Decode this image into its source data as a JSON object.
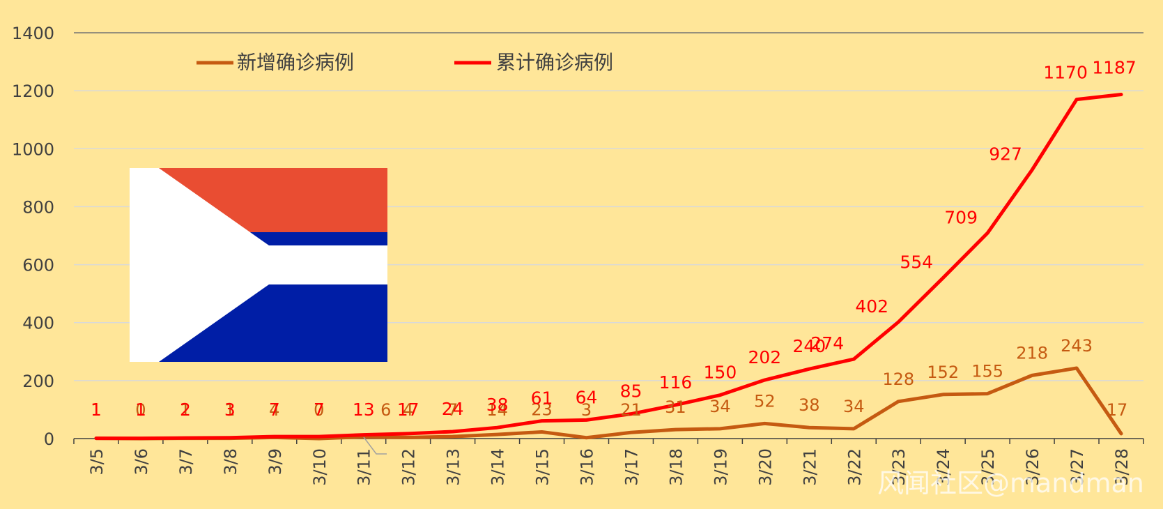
{
  "chart_data": {
    "type": "line",
    "categories": [
      "3/5",
      "3/6",
      "3/7",
      "3/8",
      "3/9",
      "3/10",
      "3/11",
      "3/12",
      "3/13",
      "3/14",
      "3/15",
      "3/16",
      "3/17",
      "3/18",
      "3/19",
      "3/20",
      "3/21",
      "3/22",
      "3/23",
      "3/24",
      "3/25",
      "3/26",
      "3/27",
      "3/28"
    ],
    "series": [
      {
        "name": "新增确诊病例",
        "color": "#C55A11",
        "values": [
          1,
          0,
          1,
          1,
          4,
          0,
          6,
          4,
          7,
          14,
          23,
          3,
          21,
          31,
          34,
          52,
          38,
          34,
          128,
          152,
          155,
          218,
          243,
          17
        ]
      },
      {
        "name": "累计确诊病例",
        "color": "#FF0000",
        "values": [
          1,
          1,
          2,
          3,
          7,
          7,
          13,
          17,
          24,
          38,
          61,
          64,
          85,
          116,
          150,
          202,
          240,
          274,
          402,
          554,
          709,
          927,
          1170,
          1187
        ]
      }
    ],
    "y_ticks": [
      "0",
      "200",
      "400",
      "600",
      "800",
      "1000",
      "1200",
      "1400"
    ],
    "ylim": [
      0,
      1400
    ],
    "grid": "horizontal",
    "legend": "top-left"
  },
  "flag": {
    "name": "south-africa-flag",
    "colors": {
      "red": "#E94D32",
      "green": "#009272",
      "blue": "#001EA6",
      "black": "#000000",
      "gold": "#FFC01A",
      "white": "#FFFFFF"
    }
  },
  "watermark": "风闻社区@mandman"
}
